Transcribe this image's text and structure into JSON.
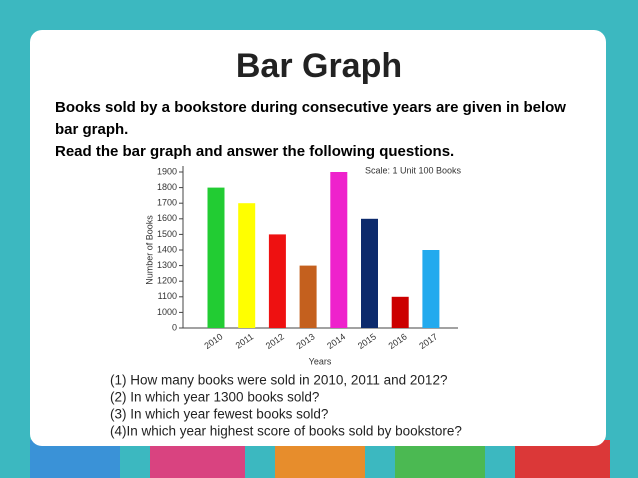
{
  "slide_title": "Bar Graph",
  "intro": [
    "Books sold by a bookstore during consecutive years are given in below",
    "bar graph.",
    "Read the bar graph and answer the following questions."
  ],
  "questions": [
    "(1) How many books were sold in 2010, 2011 and 2012?",
    "(2) In which year 1300 books sold?",
    "(3) In which year fewest books sold?",
    "(4)In which year highest score of books sold by bookstore?"
  ],
  "chart_data": {
    "type": "bar",
    "annotation": "Scale: 1 Unit 100 Books",
    "x_label": "Years",
    "y_label": "Number of Books",
    "categories": [
      "2010",
      "2011",
      "2012",
      "2013",
      "2014",
      "2015",
      "2016",
      "2017"
    ],
    "values": [
      1800,
      1700,
      1500,
      1300,
      1900,
      1600,
      1100,
      1400
    ],
    "colors": [
      "#22cc33",
      "#ffff00",
      "#ee1111",
      "#c4601e",
      "#ee22cc",
      "#0c2a6c",
      "#cc0000",
      "#22aaee"
    ],
    "ylim": [
      0,
      1900
    ],
    "y_break": [
      0,
      1000
    ],
    "yticks": [
      0,
      1000,
      1100,
      1200,
      1300,
      1400,
      1500,
      1600,
      1700,
      1800,
      1900
    ]
  }
}
